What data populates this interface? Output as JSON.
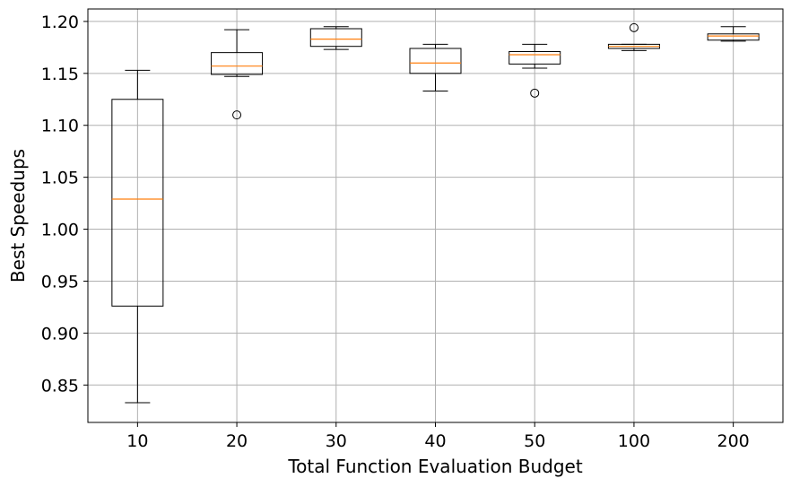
{
  "chart_data": {
    "type": "box",
    "xlabel": "Total Function Evaluation Budget",
    "ylabel": "Best Speedups",
    "ylim": [
      0.814,
      1.212
    ],
    "yticks": [
      "0.85",
      "0.90",
      "0.95",
      "1.00",
      "1.05",
      "1.10",
      "1.15",
      "1.20"
    ],
    "grid": true,
    "colors": {
      "box": "#000000",
      "median": "#ff7f0e",
      "grid": "#b0b0b0"
    },
    "categories": [
      "10",
      "20",
      "30",
      "40",
      "50",
      "100",
      "200"
    ],
    "boxes": [
      {
        "label": "10",
        "whislo": 0.833,
        "q1": 0.926,
        "med": 1.029,
        "q3": 1.125,
        "whishi": 1.153,
        "fliers": []
      },
      {
        "label": "20",
        "whislo": 1.147,
        "q1": 1.149,
        "med": 1.157,
        "q3": 1.17,
        "whishi": 1.192,
        "fliers": [
          1.11
        ]
      },
      {
        "label": "30",
        "whislo": 1.173,
        "q1": 1.176,
        "med": 1.183,
        "q3": 1.193,
        "whishi": 1.195,
        "fliers": []
      },
      {
        "label": "40",
        "whislo": 1.133,
        "q1": 1.15,
        "med": 1.16,
        "q3": 1.174,
        "whishi": 1.178,
        "fliers": []
      },
      {
        "label": "50",
        "whislo": 1.155,
        "q1": 1.159,
        "med": 1.168,
        "q3": 1.171,
        "whishi": 1.178,
        "fliers": [
          1.131
        ]
      },
      {
        "label": "100",
        "whislo": 1.172,
        "q1": 1.174,
        "med": 1.176,
        "q3": 1.178,
        "whishi": 1.178,
        "fliers": [
          1.194
        ]
      },
      {
        "label": "200",
        "whislo": 1.181,
        "q1": 1.182,
        "med": 1.186,
        "q3": 1.188,
        "whishi": 1.195,
        "fliers": []
      }
    ]
  }
}
